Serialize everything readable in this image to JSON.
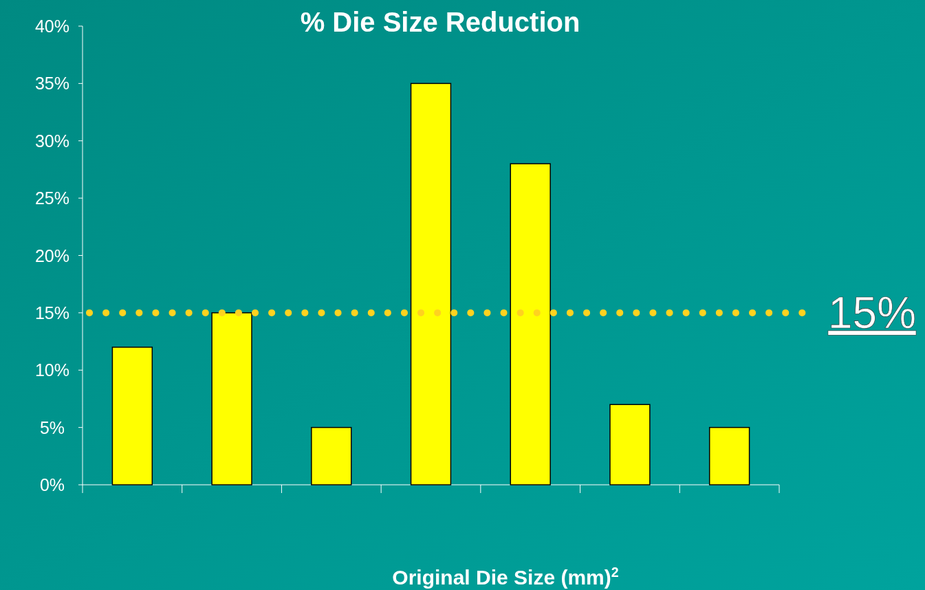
{
  "chart_data": {
    "type": "bar",
    "title": "% Die Size Reduction",
    "xlabel": "Original Die Size (mm)$^{2}$",
    "categories": [
      null,
      null,
      null,
      null,
      null,
      null,
      null
    ],
    "values": [
      12,
      15,
      5,
      35,
      28,
      7,
      5
    ],
    "color": "#ffff00",
    "ylim": [
      0,
      40
    ],
    "yticks": [
      {
        "value": 0,
        "label": "0%"
      },
      {
        "value": 5,
        "label": "5%"
      },
      {
        "value": 10,
        "label": "10%"
      },
      {
        "value": 15,
        "label": "15%"
      },
      {
        "value": 20,
        "label": "20%"
      },
      {
        "value": 25,
        "label": "25%"
      },
      {
        "value": 30,
        "label": "30%"
      },
      {
        "value": 35,
        "label": "35%"
      },
      {
        "value": 40,
        "label": "40%"
      }
    ],
    "ref_lines": [
      {
        "axis": "y",
        "value": 15,
        "label": "15%",
        "color": "#ffd21f",
        "line_style": "dotted"
      }
    ]
  }
}
